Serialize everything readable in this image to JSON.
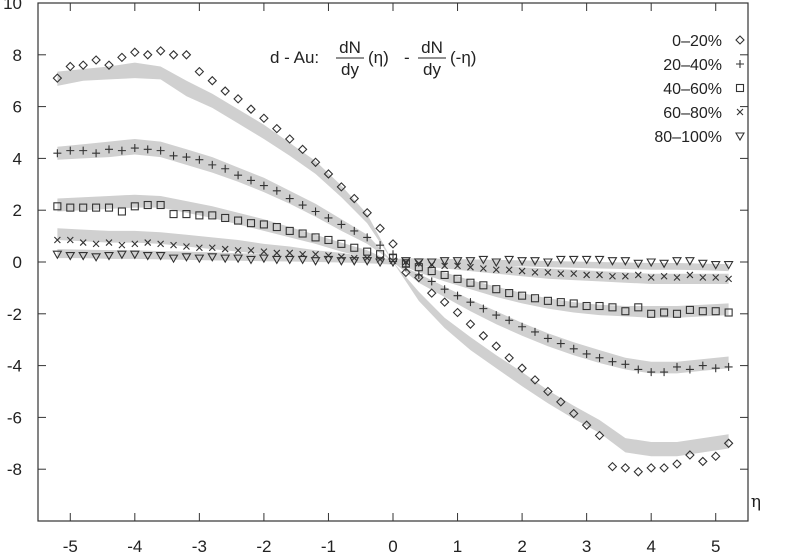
{
  "chart_data": {
    "type": "scatter",
    "title": {
      "prefix": "d - Au:",
      "frac1_num": "dN",
      "frac1_den": "dy",
      "arg1": "(η)",
      "minus": "-",
      "frac2_num": "dN",
      "frac2_den": "dy",
      "arg2": "(-η)"
    },
    "xlabel": "η",
    "ylabel": "",
    "xlim": [
      -5.5,
      5.5
    ],
    "ylim": [
      -10,
      10
    ],
    "x_ticks": [
      -5,
      -4,
      -3,
      -2,
      -1,
      0,
      1,
      2,
      3,
      4,
      5
    ],
    "x_tick_labels": [
      "-5",
      "-4",
      "-3",
      "-2",
      "-1",
      "0",
      "1",
      "2",
      "3",
      "4",
      "5"
    ],
    "y_ticks": [
      -8,
      -6,
      -4,
      -2,
      0,
      2,
      4,
      6,
      8,
      10
    ],
    "y_tick_labels": [
      "-8",
      "-6",
      "-4",
      "-2",
      "0",
      "2",
      "4",
      "6",
      "8",
      "10"
    ],
    "grid": false,
    "legend_position": "top-right",
    "band_color": "#d0d0d0",
    "marker_color": "#333333",
    "series": [
      {
        "name": "0–20%",
        "marker": "diamond",
        "x": [
          -5.2,
          -5.0,
          -4.8,
          -4.6,
          -4.4,
          -4.2,
          -4.0,
          -3.8,
          -3.6,
          -3.4,
          -3.2,
          -3.0,
          -2.8,
          -2.6,
          -2.4,
          -2.2,
          -2.0,
          -1.8,
          -1.6,
          -1.4,
          -1.2,
          -1.0,
          -0.8,
          -0.6,
          -0.4,
          -0.2,
          0.0,
          0.2,
          0.4,
          0.6,
          0.8,
          1.0,
          1.2,
          1.4,
          1.6,
          1.8,
          2.0,
          2.2,
          2.4,
          2.6,
          2.8,
          3.0,
          3.2,
          3.4,
          3.6,
          3.8,
          4.0,
          4.2,
          4.4,
          4.6,
          4.8,
          5.0,
          5.2
        ],
        "y": [
          7.1,
          7.55,
          7.6,
          7.8,
          7.6,
          7.9,
          8.1,
          8.0,
          8.15,
          8.0,
          8.0,
          7.35,
          7.0,
          6.6,
          6.3,
          5.9,
          5.55,
          5.15,
          4.75,
          4.35,
          3.85,
          3.4,
          2.9,
          2.45,
          1.9,
          1.3,
          0.7,
          -0.4,
          -0.6,
          -1.2,
          -1.55,
          -1.95,
          -2.4,
          -2.85,
          -3.25,
          -3.7,
          -4.1,
          -4.55,
          -5.0,
          -5.4,
          -5.85,
          -6.3,
          -6.7,
          -7.9,
          -7.95,
          -8.1,
          -7.95,
          -7.95,
          -7.8,
          -7.45,
          -7.7,
          -7.5,
          -7.0
        ]
      },
      {
        "name": "20–40%",
        "marker": "plus",
        "x": [
          -5.2,
          -5.0,
          -4.8,
          -4.6,
          -4.4,
          -4.2,
          -4.0,
          -3.8,
          -3.6,
          -3.4,
          -3.2,
          -3.0,
          -2.8,
          -2.6,
          -2.4,
          -2.2,
          -2.0,
          -1.8,
          -1.6,
          -1.4,
          -1.2,
          -1.0,
          -0.8,
          -0.6,
          -0.4,
          -0.2,
          0.0,
          0.2,
          0.4,
          0.6,
          0.8,
          1.0,
          1.2,
          1.4,
          1.6,
          1.8,
          2.0,
          2.2,
          2.4,
          2.6,
          2.8,
          3.0,
          3.2,
          3.4,
          3.6,
          3.8,
          4.0,
          4.2,
          4.4,
          4.6,
          4.8,
          5.0,
          5.2
        ],
        "y": [
          4.2,
          4.3,
          4.3,
          4.2,
          4.35,
          4.3,
          4.4,
          4.35,
          4.3,
          4.1,
          4.05,
          3.95,
          3.75,
          3.6,
          3.35,
          3.15,
          2.95,
          2.75,
          2.45,
          2.2,
          1.95,
          1.7,
          1.45,
          1.2,
          0.95,
          0.65,
          0.3,
          -0.2,
          -0.5,
          -0.75,
          -1.05,
          -1.3,
          -1.55,
          -1.8,
          -2.05,
          -2.25,
          -2.5,
          -2.7,
          -2.95,
          -3.15,
          -3.35,
          -3.55,
          -3.7,
          -3.85,
          -3.95,
          -4.15,
          -4.25,
          -4.25,
          -4.05,
          -4.15,
          -4.0,
          -4.1,
          -4.05
        ]
      },
      {
        "name": "40–60%",
        "marker": "square",
        "x": [
          -5.2,
          -5.0,
          -4.8,
          -4.6,
          -4.4,
          -4.2,
          -4.0,
          -3.8,
          -3.6,
          -3.4,
          -3.2,
          -3.0,
          -2.8,
          -2.6,
          -2.4,
          -2.2,
          -2.0,
          -1.8,
          -1.6,
          -1.4,
          -1.2,
          -1.0,
          -0.8,
          -0.6,
          -0.4,
          -0.2,
          0.0,
          0.2,
          0.4,
          0.6,
          0.8,
          1.0,
          1.2,
          1.4,
          1.6,
          1.8,
          2.0,
          2.2,
          2.4,
          2.6,
          2.8,
          3.0,
          3.2,
          3.4,
          3.6,
          3.8,
          4.0,
          4.2,
          4.4,
          4.6,
          4.8,
          5.0,
          5.2
        ],
        "y": [
          2.15,
          2.1,
          2.1,
          2.1,
          2.1,
          1.95,
          2.15,
          2.2,
          2.2,
          1.85,
          1.85,
          1.8,
          1.8,
          1.7,
          1.6,
          1.5,
          1.45,
          1.35,
          1.2,
          1.1,
          0.95,
          0.85,
          0.7,
          0.55,
          0.4,
          0.3,
          0.15,
          -0.05,
          -0.2,
          -0.35,
          -0.5,
          -0.65,
          -0.8,
          -0.9,
          -1.05,
          -1.2,
          -1.3,
          -1.4,
          -1.5,
          -1.55,
          -1.6,
          -1.7,
          -1.7,
          -1.75,
          -1.9,
          -1.75,
          -2.0,
          -1.95,
          -2.0,
          -1.85,
          -1.9,
          -1.9,
          -1.95
        ]
      },
      {
        "name": "60–80%",
        "marker": "cross",
        "x": [
          -5.2,
          -5.0,
          -4.8,
          -4.6,
          -4.4,
          -4.2,
          -4.0,
          -3.8,
          -3.6,
          -3.4,
          -3.2,
          -3.0,
          -2.8,
          -2.6,
          -2.4,
          -2.2,
          -2.0,
          -1.8,
          -1.6,
          -1.4,
          -1.2,
          -1.0,
          -0.8,
          -0.6,
          -0.4,
          -0.2,
          0.0,
          0.2,
          0.4,
          0.6,
          0.8,
          1.0,
          1.2,
          1.4,
          1.6,
          1.8,
          2.0,
          2.2,
          2.4,
          2.6,
          2.8,
          3.0,
          3.2,
          3.4,
          3.6,
          3.8,
          4.0,
          4.2,
          4.4,
          4.6,
          4.8,
          5.0,
          5.2
        ],
        "y": [
          0.85,
          0.85,
          0.75,
          0.7,
          0.75,
          0.65,
          0.7,
          0.75,
          0.7,
          0.65,
          0.6,
          0.55,
          0.55,
          0.5,
          0.45,
          0.45,
          0.4,
          0.35,
          0.35,
          0.3,
          0.3,
          0.25,
          0.2,
          0.15,
          0.15,
          0.1,
          0.05,
          0.0,
          -0.05,
          -0.1,
          -0.15,
          -0.15,
          -0.2,
          -0.25,
          -0.3,
          -0.3,
          -0.35,
          -0.4,
          -0.4,
          -0.45,
          -0.45,
          -0.5,
          -0.5,
          -0.55,
          -0.55,
          -0.5,
          -0.6,
          -0.55,
          -0.6,
          -0.5,
          -0.6,
          -0.6,
          -0.65
        ]
      },
      {
        "name": "80–100%",
        "marker": "triangle-down",
        "x": [
          -5.2,
          -5.0,
          -4.8,
          -4.6,
          -4.4,
          -4.2,
          -4.0,
          -3.8,
          -3.6,
          -3.4,
          -3.2,
          -3.0,
          -2.8,
          -2.6,
          -2.4,
          -2.2,
          -2.0,
          -1.8,
          -1.6,
          -1.4,
          -1.2,
          -1.0,
          -0.8,
          -0.6,
          -0.4,
          -0.2,
          0.0,
          0.2,
          0.4,
          0.6,
          0.8,
          1.0,
          1.2,
          1.4,
          1.6,
          1.8,
          2.0,
          2.2,
          2.4,
          2.6,
          2.8,
          3.0,
          3.2,
          3.4,
          3.6,
          3.8,
          4.0,
          4.2,
          4.4,
          4.6,
          4.8,
          5.0,
          5.2
        ],
        "y": [
          0.3,
          0.25,
          0.25,
          0.2,
          0.25,
          0.3,
          0.3,
          0.25,
          0.25,
          0.15,
          0.2,
          0.15,
          0.2,
          0.15,
          0.15,
          0.1,
          0.15,
          0.1,
          0.1,
          0.1,
          0.05,
          0.1,
          0.05,
          0.05,
          0.05,
          0.0,
          0.0,
          0.05,
          0.0,
          0.0,
          0.05,
          0.05,
          0.05,
          0.1,
          0.0,
          0.1,
          0.05,
          0.05,
          0.0,
          0.1,
          0.1,
          0.1,
          0.1,
          0.05,
          0.05,
          -0.05,
          0.0,
          -0.05,
          0.05,
          0.05,
          -0.05,
          -0.1,
          -0.1
        ]
      }
    ],
    "bands": [
      {
        "x": [
          -5.2,
          -4.8,
          -4.4,
          -4.0,
          -3.6,
          -3.2,
          -2.8,
          -2.4,
          -2.0,
          -1.6,
          -1.2,
          -0.8,
          -0.4,
          0.0,
          0.4,
          0.8,
          1.2,
          1.6,
          2.0,
          2.4,
          2.8,
          3.2,
          3.6,
          4.0,
          4.4,
          4.8,
          5.2
        ],
        "lower": [
          6.8,
          7.0,
          7.05,
          7.1,
          7.05,
          6.4,
          5.95,
          5.35,
          4.75,
          4.1,
          3.4,
          2.5,
          1.5,
          0.0,
          -1.5,
          -2.55,
          -3.4,
          -4.1,
          -4.8,
          -5.45,
          -6.05,
          -6.6,
          -7.35,
          -7.5,
          -7.5,
          -7.35,
          -7.2
        ],
        "upper": [
          7.35,
          7.45,
          7.55,
          7.7,
          7.55,
          7.0,
          6.5,
          5.9,
          5.3,
          4.6,
          3.9,
          2.95,
          1.85,
          0.0,
          -1.15,
          -2.15,
          -2.9,
          -3.6,
          -4.25,
          -4.95,
          -5.55,
          -6.1,
          -6.8,
          -6.95,
          -6.95,
          -6.8,
          -6.65
        ]
      },
      {
        "x": [
          -5.2,
          -4.8,
          -4.4,
          -4.0,
          -3.6,
          -3.2,
          -2.8,
          -2.4,
          -2.0,
          -1.6,
          -1.2,
          -0.8,
          -0.4,
          0.0,
          0.4,
          0.8,
          1.2,
          1.6,
          2.0,
          2.4,
          2.8,
          3.2,
          3.6,
          4.0,
          4.4,
          4.8,
          5.2
        ],
        "lower": [
          3.95,
          4.0,
          4.05,
          4.15,
          4.05,
          3.75,
          3.45,
          3.1,
          2.7,
          2.25,
          1.75,
          1.2,
          0.7,
          0.0,
          -0.8,
          -1.35,
          -1.9,
          -2.4,
          -2.85,
          -3.25,
          -3.6,
          -3.9,
          -4.15,
          -4.3,
          -4.3,
          -4.2,
          -4.1
        ],
        "upper": [
          4.45,
          4.55,
          4.65,
          4.75,
          4.65,
          4.35,
          4.05,
          3.65,
          3.25,
          2.75,
          2.25,
          1.65,
          1.05,
          0.0,
          -0.45,
          -0.95,
          -1.45,
          -1.9,
          -2.35,
          -2.75,
          -3.1,
          -3.4,
          -3.7,
          -3.85,
          -3.85,
          -3.75,
          -3.65
        ]
      },
      {
        "x": [
          -5.2,
          -4.8,
          -4.4,
          -4.0,
          -3.6,
          -3.2,
          -2.8,
          -2.4,
          -2.0,
          -1.6,
          -1.2,
          -0.8,
          -0.4,
          0.0,
          0.4,
          0.8,
          1.2,
          1.6,
          2.0,
          2.4,
          2.8,
          3.2,
          3.6,
          4.0,
          4.4,
          4.8,
          5.2
        ],
        "lower": [
          1.95,
          2.0,
          2.05,
          2.1,
          2.1,
          1.9,
          1.7,
          1.45,
          1.2,
          0.95,
          0.7,
          0.4,
          0.15,
          0.0,
          -0.4,
          -0.75,
          -1.05,
          -1.35,
          -1.6,
          -1.8,
          -1.95,
          -2.05,
          -2.1,
          -2.15,
          -2.15,
          -2.1,
          -2.05
        ],
        "upper": [
          2.45,
          2.5,
          2.55,
          2.6,
          2.55,
          2.35,
          2.15,
          1.9,
          1.65,
          1.35,
          1.05,
          0.75,
          0.45,
          0.0,
          -0.1,
          -0.4,
          -0.7,
          -0.95,
          -1.2,
          -1.4,
          -1.55,
          -1.65,
          -1.7,
          -1.7,
          -1.7,
          -1.65,
          -1.6
        ]
      },
      {
        "x": [
          -5.2,
          -4.8,
          -4.4,
          -4.0,
          -3.6,
          -3.2,
          -2.8,
          -2.4,
          -2.0,
          -1.6,
          -1.2,
          -0.8,
          -0.4,
          0.0,
          0.4,
          0.8,
          1.2,
          1.6,
          2.0,
          2.4,
          2.8,
          3.2,
          3.6,
          4.0,
          4.4,
          4.8,
          5.2
        ],
        "lower": [
          0.85,
          0.8,
          0.75,
          0.75,
          0.7,
          0.6,
          0.5,
          0.4,
          0.3,
          0.2,
          0.1,
          0.0,
          -0.05,
          -0.1,
          -0.15,
          -0.25,
          -0.35,
          -0.45,
          -0.55,
          -0.65,
          -0.7,
          -0.75,
          -0.8,
          -0.85,
          -0.85,
          -0.85,
          -0.85
        ],
        "upper": [
          1.3,
          1.25,
          1.2,
          1.2,
          1.15,
          1.05,
          0.95,
          0.85,
          0.7,
          0.6,
          0.45,
          0.35,
          0.2,
          0.1,
          0.15,
          0.05,
          -0.05,
          -0.1,
          -0.2,
          -0.25,
          -0.3,
          -0.35,
          -0.4,
          -0.45,
          -0.45,
          -0.45,
          -0.45
        ]
      },
      {
        "x": [
          -5.2,
          -4.8,
          -4.4,
          -4.0,
          -3.6,
          -3.2,
          -2.8,
          -2.4,
          -2.0,
          -1.6,
          -1.2,
          -0.8,
          -0.4,
          0.0,
          0.4,
          0.8,
          1.2,
          1.6,
          2.0,
          2.4,
          2.8,
          3.2,
          3.6,
          4.0,
          4.4,
          4.8,
          5.2
        ],
        "lower": [
          0.15,
          0.15,
          0.12,
          0.12,
          0.1,
          0.08,
          0.06,
          0.05,
          0.03,
          0.02,
          0.0,
          -0.02,
          -0.04,
          -0.05,
          -0.07,
          -0.1,
          -0.12,
          -0.15,
          -0.17,
          -0.2,
          -0.22,
          -0.25,
          -0.27,
          -0.3,
          -0.3,
          -0.32,
          -0.35
        ],
        "upper": [
          0.5,
          0.48,
          0.46,
          0.45,
          0.42,
          0.4,
          0.37,
          0.34,
          0.31,
          0.28,
          0.24,
          0.2,
          0.16,
          0.12,
          0.15,
          0.12,
          0.1,
          0.08,
          0.06,
          0.04,
          0.02,
          0.0,
          -0.02,
          -0.04,
          -0.04,
          -0.06,
          -0.08
        ]
      }
    ]
  }
}
